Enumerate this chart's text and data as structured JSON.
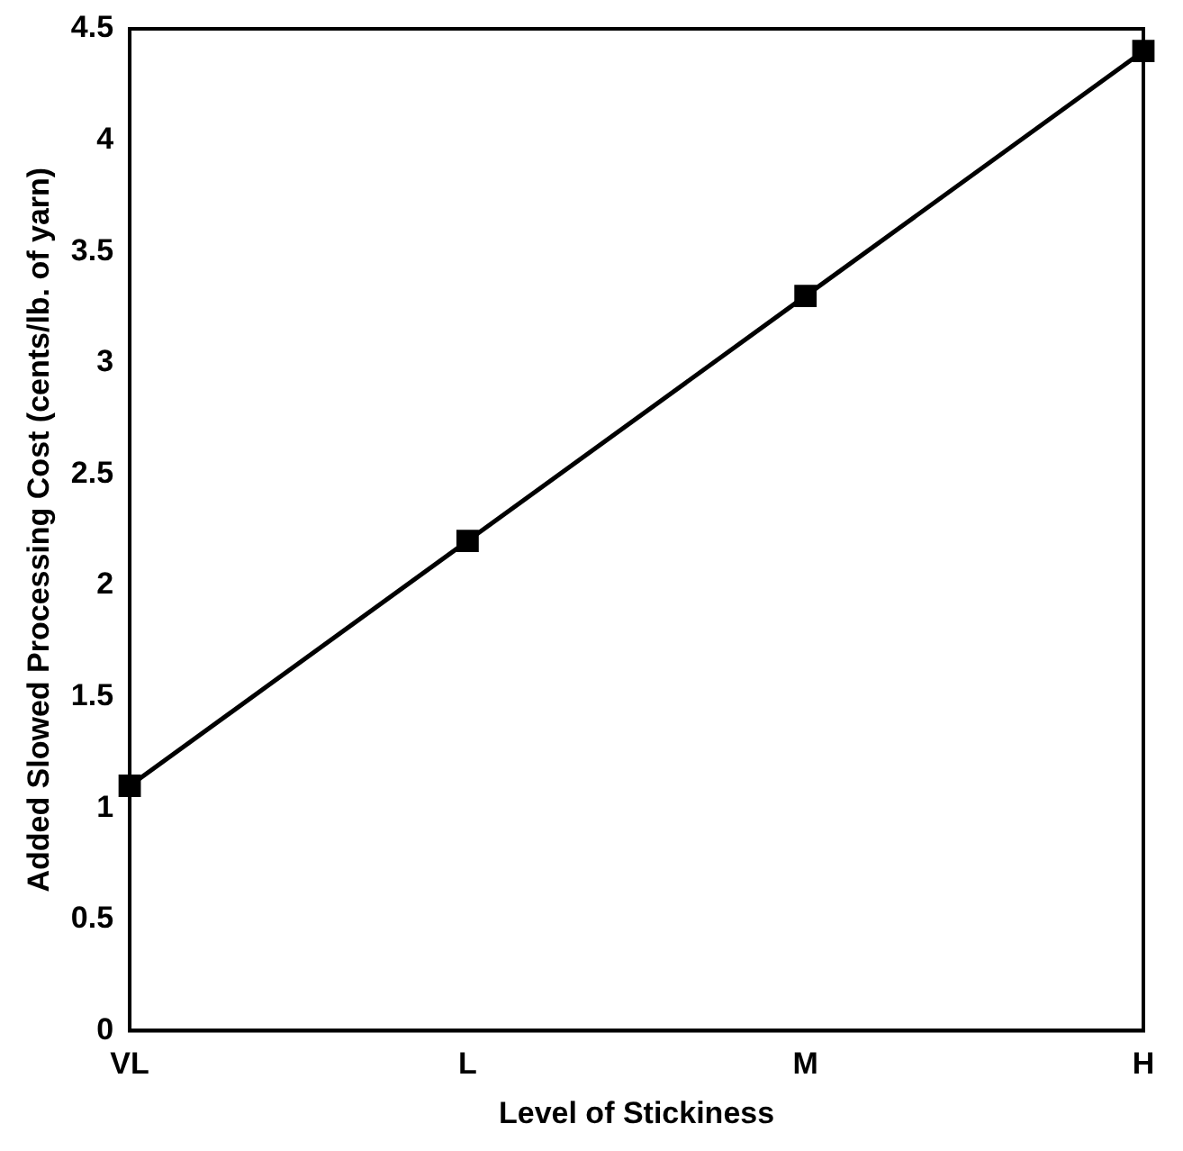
{
  "chart_data": {
    "type": "line",
    "xlabel": "Level of Stickiness",
    "ylabel": "Added Slowed Processing Cost (cents/lb. of yarn)",
    "categories": [
      "VL",
      "L",
      "M",
      "H"
    ],
    "series": [
      {
        "color": "#000000",
        "values": [
          1.1,
          2.2,
          3.3,
          4.4
        ]
      }
    ],
    "ylim": [
      0,
      4.5
    ],
    "yticks": [
      0,
      0.5,
      1,
      1.5,
      2,
      2.5,
      3,
      3.5,
      4,
      4.5
    ],
    "grid": false,
    "legend": false,
    "marker": "square",
    "line_style": "solid"
  }
}
